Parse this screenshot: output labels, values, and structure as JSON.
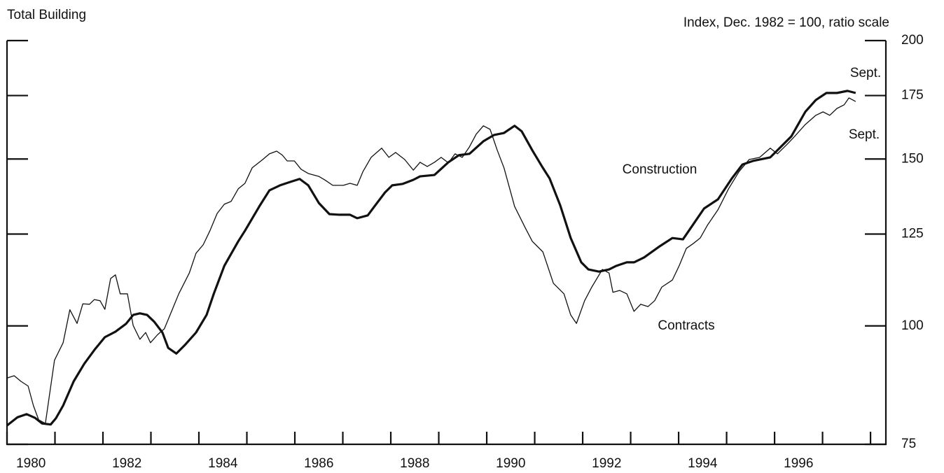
{
  "chart_data": {
    "type": "line",
    "title": "Total Building",
    "subtitle": "Index, Dec. 1982 = 100, ratio scale",
    "log_scale": true,
    "xlim": [
      1980,
      1998.32
    ],
    "ylim": [
      75,
      200
    ],
    "yticks": [
      75,
      100,
      125,
      150,
      175,
      200
    ],
    "xticks": [
      {
        "value": 1980.5,
        "label": "1980"
      },
      {
        "value": 1982.5,
        "label": "1982"
      },
      {
        "value": 1984.5,
        "label": "1984"
      },
      {
        "value": 1986.5,
        "label": "1986"
      },
      {
        "value": 1988.5,
        "label": "1988"
      },
      {
        "value": 1990.5,
        "label": "1990"
      },
      {
        "value": 1992.5,
        "label": "1992"
      },
      {
        "value": 1994.5,
        "label": "1994"
      },
      {
        "value": 1996.5,
        "label": "1996"
      }
    ],
    "xminor_ticks": [
      1980,
      1981,
      1982,
      1983,
      1984,
      1985,
      1986,
      1987,
      1988,
      1989,
      1990,
      1991,
      1992,
      1993,
      1994,
      1995,
      1996,
      1997,
      1998
    ],
    "series": [
      {
        "name": "Construction",
        "color": "#111111",
        "line_width": 3.2,
        "x": [
          1980.0,
          1980.22,
          1980.41,
          1980.58,
          1980.73,
          1980.91,
          1981.02,
          1981.17,
          1981.39,
          1981.61,
          1981.82,
          1982.04,
          1982.26,
          1982.48,
          1982.63,
          1982.77,
          1982.92,
          1983.07,
          1983.24,
          1983.36,
          1983.53,
          1983.72,
          1983.94,
          1984.16,
          1984.31,
          1984.53,
          1984.82,
          1984.96,
          1985.26,
          1985.47,
          1985.69,
          1985.91,
          1986.1,
          1986.28,
          1986.5,
          1986.72,
          1986.93,
          1987.15,
          1987.3,
          1987.52,
          1987.66,
          1987.88,
          1988.03,
          1988.25,
          1988.47,
          1988.61,
          1988.91,
          1989.2,
          1989.42,
          1989.64,
          1989.93,
          1990.15,
          1990.36,
          1990.58,
          1990.73,
          1990.95,
          1991.17,
          1991.31,
          1991.53,
          1991.75,
          1991.97,
          1992.12,
          1992.34,
          1992.55,
          1992.7,
          1992.92,
          1993.07,
          1993.28,
          1993.58,
          1993.87,
          1994.09,
          1994.31,
          1994.53,
          1994.82,
          1995.11,
          1995.33,
          1995.55,
          1995.91,
          1996.13,
          1996.35,
          1996.64,
          1996.86,
          1997.08,
          1997.3,
          1997.52,
          1997.69
        ],
        "values": [
          78.5,
          80.1,
          80.7,
          80.0,
          78.9,
          78.7,
          79.9,
          82.4,
          87.4,
          91.2,
          94.3,
          97.3,
          98.6,
          100.5,
          102.7,
          103.1,
          102.7,
          101.0,
          98.4,
          94.8,
          93.5,
          95.6,
          98.4,
          102.7,
          108.1,
          115.7,
          122.8,
          126.0,
          133.7,
          139.0,
          140.7,
          141.9,
          142.9,
          140.7,
          134.8,
          131.2,
          131.0,
          131.0,
          129.9,
          130.8,
          133.7,
          138.3,
          140.7,
          141.2,
          142.6,
          143.8,
          144.3,
          148.8,
          151.4,
          151.9,
          156.6,
          159.0,
          159.8,
          162.6,
          160.4,
          153.2,
          146.8,
          143.1,
          134.1,
          123.8,
          116.7,
          114.7,
          114.1,
          114.7,
          115.7,
          116.7,
          116.7,
          118.1,
          121.1,
          123.8,
          123.4,
          128.1,
          133.0,
          136.0,
          143.1,
          148.0,
          149.3,
          150.6,
          154.5,
          158.5,
          168.2,
          173.1,
          176.1,
          176.1,
          177.0,
          176.1
        ]
      },
      {
        "name": "Contracts",
        "color": "#111111",
        "line_width": 1.3,
        "x": [
          1980.0,
          1980.15,
          1980.29,
          1980.44,
          1980.55,
          1980.66,
          1980.8,
          1980.99,
          1981.17,
          1981.31,
          1981.46,
          1981.58,
          1981.72,
          1981.82,
          1981.94,
          1982.04,
          1982.16,
          1982.26,
          1982.36,
          1982.51,
          1982.63,
          1982.77,
          1982.89,
          1982.99,
          1983.14,
          1983.28,
          1983.43,
          1983.58,
          1983.8,
          1983.94,
          1984.09,
          1984.23,
          1984.38,
          1984.53,
          1984.67,
          1984.82,
          1984.96,
          1985.11,
          1985.33,
          1985.47,
          1985.62,
          1985.74,
          1985.84,
          1985.99,
          1986.13,
          1986.28,
          1986.5,
          1986.64,
          1986.79,
          1987.01,
          1987.15,
          1987.3,
          1987.42,
          1987.59,
          1987.81,
          1987.96,
          1988.1,
          1988.29,
          1988.47,
          1988.61,
          1988.76,
          1988.91,
          1989.05,
          1989.2,
          1989.34,
          1989.49,
          1989.64,
          1989.78,
          1989.93,
          1990.07,
          1990.22,
          1990.36,
          1990.58,
          1990.8,
          1990.95,
          1991.17,
          1991.39,
          1991.61,
          1991.75,
          1991.87,
          1992.04,
          1992.19,
          1992.41,
          1992.55,
          1992.63,
          1992.77,
          1992.92,
          1993.07,
          1993.21,
          1993.36,
          1993.5,
          1993.65,
          1993.87,
          1994.01,
          1994.16,
          1994.31,
          1994.45,
          1994.6,
          1994.82,
          1995.04,
          1995.26,
          1995.47,
          1995.69,
          1995.91,
          1996.06,
          1996.28,
          1996.42,
          1996.64,
          1996.86,
          1997.01,
          1997.15,
          1997.3,
          1997.45,
          1997.55,
          1997.69
        ],
        "values": [
          88.1,
          88.6,
          87.4,
          86.4,
          82.4,
          79.6,
          78.9,
          92.0,
          96.0,
          104.0,
          100.6,
          105.5,
          105.4,
          106.6,
          106.3,
          104.1,
          112.2,
          113.2,
          108.1,
          108.1,
          100.1,
          96.8,
          98.4,
          96.0,
          97.9,
          99.3,
          103.6,
          108.1,
          113.7,
          119.3,
          121.8,
          126.0,
          131.4,
          134.4,
          135.3,
          139.5,
          141.4,
          146.8,
          149.8,
          151.9,
          152.9,
          151.4,
          149.3,
          149.3,
          146.3,
          144.8,
          143.8,
          142.4,
          140.7,
          140.7,
          141.4,
          140.7,
          145.5,
          150.6,
          154.0,
          150.6,
          152.4,
          149.8,
          146.0,
          148.8,
          147.3,
          148.8,
          150.6,
          148.6,
          151.9,
          150.6,
          154.5,
          159.3,
          162.6,
          161.2,
          153.2,
          146.8,
          133.7,
          127.0,
          122.8,
          119.7,
          110.9,
          108.1,
          102.7,
          100.6,
          106.3,
          109.9,
          114.7,
          113.7,
          108.5,
          109.0,
          108.1,
          103.6,
          105.4,
          104.8,
          106.3,
          109.9,
          111.8,
          115.7,
          120.7,
          122.2,
          123.8,
          127.7,
          132.6,
          139.5,
          145.5,
          149.8,
          150.6,
          154.0,
          151.9,
          155.8,
          158.5,
          163.1,
          166.8,
          168.2,
          166.8,
          169.6,
          171.1,
          174.0,
          172.5
        ]
      }
    ],
    "annotations": [
      "Construction",
      "Contracts",
      "Sept.",
      "Sept."
    ]
  }
}
